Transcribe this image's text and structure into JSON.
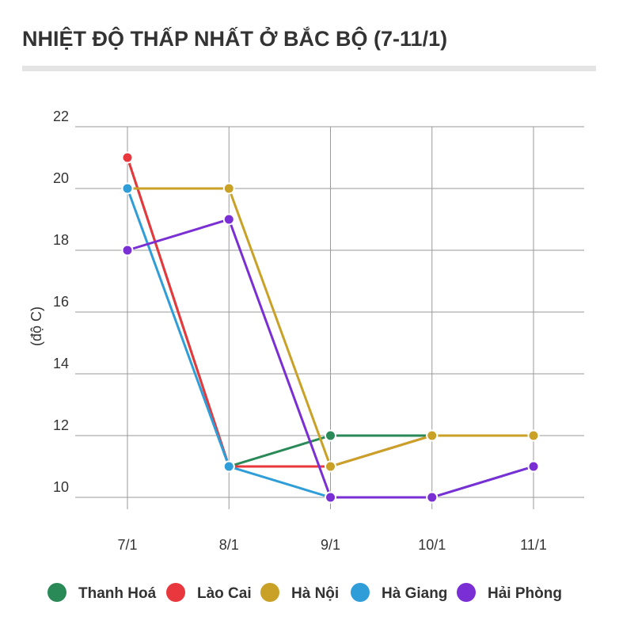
{
  "chart_data": {
    "type": "line",
    "title": "NHIỆT ĐỘ THẤP NHẤT Ở BẮC BỘ (7-11/1)",
    "y_label": "(độ C)",
    "categories": [
      "7/1",
      "8/1",
      "9/1",
      "10/1",
      "11/1"
    ],
    "series": [
      {
        "name": "Thanh Hoá",
        "color": "#2a8a57",
        "values": [
          21,
          11,
          12,
          12,
          12
        ]
      },
      {
        "name": "Lào Cai",
        "color": "#e8383d",
        "values": [
          21,
          11,
          11,
          12,
          12
        ]
      },
      {
        "name": "Hà Nội",
        "color": "#c9a127",
        "values": [
          20,
          20,
          11,
          12,
          12
        ]
      },
      {
        "name": "Hà Giang",
        "color": "#2f9ed8",
        "values": [
          20,
          11,
          10,
          10,
          11
        ]
      },
      {
        "name": "Hải Phòng",
        "color": "#7a2fd4",
        "values": [
          18,
          19,
          10,
          10,
          11
        ]
      }
    ],
    "ylim": [
      10,
      22
    ],
    "yticks": [
      10,
      12,
      14,
      16,
      18,
      20,
      22
    ],
    "grid": true
  }
}
